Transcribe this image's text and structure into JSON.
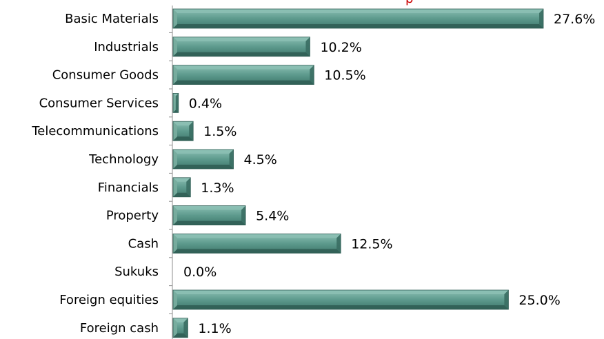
{
  "chart_data": {
    "type": "bar",
    "orientation": "horizontal",
    "categories": [
      "Basic Materials",
      "Industrials",
      "Consumer Goods",
      "Consumer Services",
      "Telecommunications",
      "Technology",
      "Financials",
      "Property",
      "Cash",
      "Sukuks",
      "Foreign equities",
      "Foreign cash"
    ],
    "values": [
      27.6,
      10.2,
      10.5,
      0.4,
      1.5,
      4.5,
      1.3,
      5.4,
      12.5,
      0.0,
      25.0,
      1.1
    ],
    "value_labels": [
      "27.6%",
      "10.2%",
      "10.5%",
      "0.4%",
      "1.5%",
      "4.5%",
      "1.3%",
      "5.4%",
      "12.5%",
      "0.0%",
      "25.0%",
      "1.1%"
    ],
    "title": "",
    "xlim": [
      0,
      30
    ],
    "grid": false,
    "legend": "none",
    "colors": {
      "bar": "#4f8a7e",
      "bar_light": "#8cc0b4",
      "bar_dark": "#2f5d54",
      "axis": "#8c8c8c",
      "title_accent": "#cc0000"
    }
  }
}
